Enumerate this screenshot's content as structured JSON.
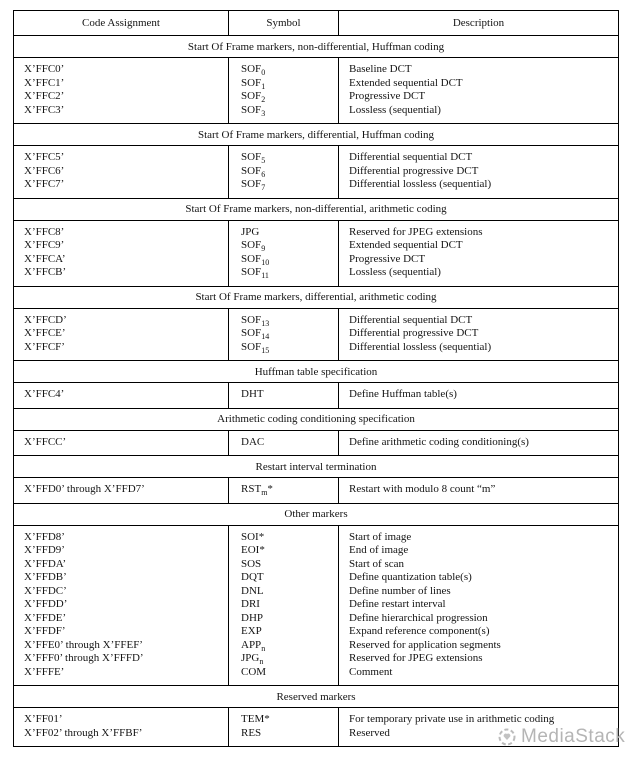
{
  "table": {
    "headers": [
      "Code Assignment",
      "Symbol",
      "Description"
    ],
    "sections": [
      {
        "title": "Start Of Frame markers, non-differential, Huffman coding",
        "entries": [
          {
            "code": "X’FFC0’",
            "symbol": {
              "base": "SOF",
              "sub": "0",
              "star": ""
            },
            "desc": "Baseline DCT"
          },
          {
            "code": "X’FFC1’",
            "symbol": {
              "base": "SOF",
              "sub": "1",
              "star": ""
            },
            "desc": "Extended sequential DCT"
          },
          {
            "code": "X’FFC2’",
            "symbol": {
              "base": "SOF",
              "sub": "2",
              "star": ""
            },
            "desc": "Progressive DCT"
          },
          {
            "code": "X’FFC3’",
            "symbol": {
              "base": "SOF",
              "sub": "3",
              "star": ""
            },
            "desc": "Lossless (sequential)"
          }
        ]
      },
      {
        "title": "Start Of Frame markers, differential, Huffman coding",
        "entries": [
          {
            "code": "X’FFC5’",
            "symbol": {
              "base": "SOF",
              "sub": "5",
              "star": ""
            },
            "desc": "Differential sequential DCT"
          },
          {
            "code": "X’FFC6’",
            "symbol": {
              "base": "SOF",
              "sub": "6",
              "star": ""
            },
            "desc": "Differential progressive DCT"
          },
          {
            "code": "X’FFC7’",
            "symbol": {
              "base": "SOF",
              "sub": "7",
              "star": ""
            },
            "desc": "Differential lossless (sequential)"
          }
        ]
      },
      {
        "title": "Start Of Frame markers, non-differential, arithmetic coding",
        "entries": [
          {
            "code": "X’FFC8’",
            "symbol": {
              "base": "JPG",
              "sub": "",
              "star": ""
            },
            "desc": "Reserved for JPEG extensions"
          },
          {
            "code": "X’FFC9’",
            "symbol": {
              "base": "SOF",
              "sub": "9",
              "star": ""
            },
            "desc": "Extended sequential DCT"
          },
          {
            "code": "X’FFCA’",
            "symbol": {
              "base": "SOF",
              "sub": "10",
              "star": ""
            },
            "desc": "Progressive DCT"
          },
          {
            "code": "X’FFCB’",
            "symbol": {
              "base": "SOF",
              "sub": "11",
              "star": ""
            },
            "desc": "Lossless (sequential)"
          }
        ]
      },
      {
        "title": "Start Of Frame markers, differential, arithmetic coding",
        "entries": [
          {
            "code": "X’FFCD’",
            "symbol": {
              "base": "SOF",
              "sub": "13",
              "star": ""
            },
            "desc": "Differential sequential DCT"
          },
          {
            "code": "X’FFCE’",
            "symbol": {
              "base": "SOF",
              "sub": "14",
              "star": ""
            },
            "desc": "Differential progressive DCT"
          },
          {
            "code": "X’FFCF’",
            "symbol": {
              "base": "SOF",
              "sub": "15",
              "star": ""
            },
            "desc": "Differential lossless (sequential)"
          }
        ]
      },
      {
        "title": "Huffman table specification",
        "entries": [
          {
            "code": "X’FFC4’",
            "symbol": {
              "base": "DHT",
              "sub": "",
              "star": ""
            },
            "desc": "Define Huffman table(s)"
          }
        ]
      },
      {
        "title": "Arithmetic coding conditioning specification",
        "entries": [
          {
            "code": "X’FFCC’",
            "symbol": {
              "base": "DAC",
              "sub": "",
              "star": ""
            },
            "desc": "Define arithmetic coding conditioning(s)"
          }
        ]
      },
      {
        "title": "Restart interval termination",
        "entries": [
          {
            "code": "X’FFD0’ through X’FFD7’",
            "symbol": {
              "base": "RST",
              "sub": "m",
              "star": "*"
            },
            "desc": "Restart with modulo 8 count “m”"
          }
        ]
      },
      {
        "title": "Other markers",
        "entries": [
          {
            "code": "X’FFD8’",
            "symbol": {
              "base": "SOI",
              "sub": "",
              "star": "*"
            },
            "desc": "Start of image"
          },
          {
            "code": "X’FFD9’",
            "symbol": {
              "base": "EOI",
              "sub": "",
              "star": "*"
            },
            "desc": "End of image"
          },
          {
            "code": "X’FFDA’",
            "symbol": {
              "base": "SOS",
              "sub": "",
              "star": ""
            },
            "desc": "Start of scan"
          },
          {
            "code": "X’FFDB’",
            "symbol": {
              "base": "DQT",
              "sub": "",
              "star": ""
            },
            "desc": "Define quantization table(s)"
          },
          {
            "code": "X’FFDC’",
            "symbol": {
              "base": "DNL",
              "sub": "",
              "star": ""
            },
            "desc": "Define number of lines"
          },
          {
            "code": "X’FFDD’",
            "symbol": {
              "base": "DRI",
              "sub": "",
              "star": ""
            },
            "desc": "Define restart interval"
          },
          {
            "code": "X’FFDE’",
            "symbol": {
              "base": "DHP",
              "sub": "",
              "star": ""
            },
            "desc": "Define hierarchical progression"
          },
          {
            "code": "X’FFDF’",
            "symbol": {
              "base": "EXP",
              "sub": "",
              "star": ""
            },
            "desc": "Expand reference component(s)"
          },
          {
            "code": "X’FFE0’ through X’FFEF’",
            "symbol": {
              "base": "APP",
              "sub": "n",
              "star": ""
            },
            "desc": "Reserved for application segments"
          },
          {
            "code": "X’FFF0’ through X’FFFD’",
            "symbol": {
              "base": "JPG",
              "sub": "n",
              "star": ""
            },
            "desc": "Reserved for JPEG extensions"
          },
          {
            "code": "X’FFFE’",
            "symbol": {
              "base": "COM",
              "sub": "",
              "star": ""
            },
            "desc": "Comment"
          }
        ]
      },
      {
        "title": "Reserved markers",
        "entries": [
          {
            "code": "X’FF01’",
            "symbol": {
              "base": "TEM",
              "sub": "",
              "star": "*"
            },
            "desc": "For temporary private use in arithmetic coding"
          },
          {
            "code": "X’FF02’ through X’FFBF’",
            "symbol": {
              "base": "RES",
              "sub": "",
              "star": ""
            },
            "desc": "Reserved"
          }
        ]
      }
    ]
  },
  "watermark": {
    "text": "MediaStack",
    "color": "#b5b5b5"
  }
}
